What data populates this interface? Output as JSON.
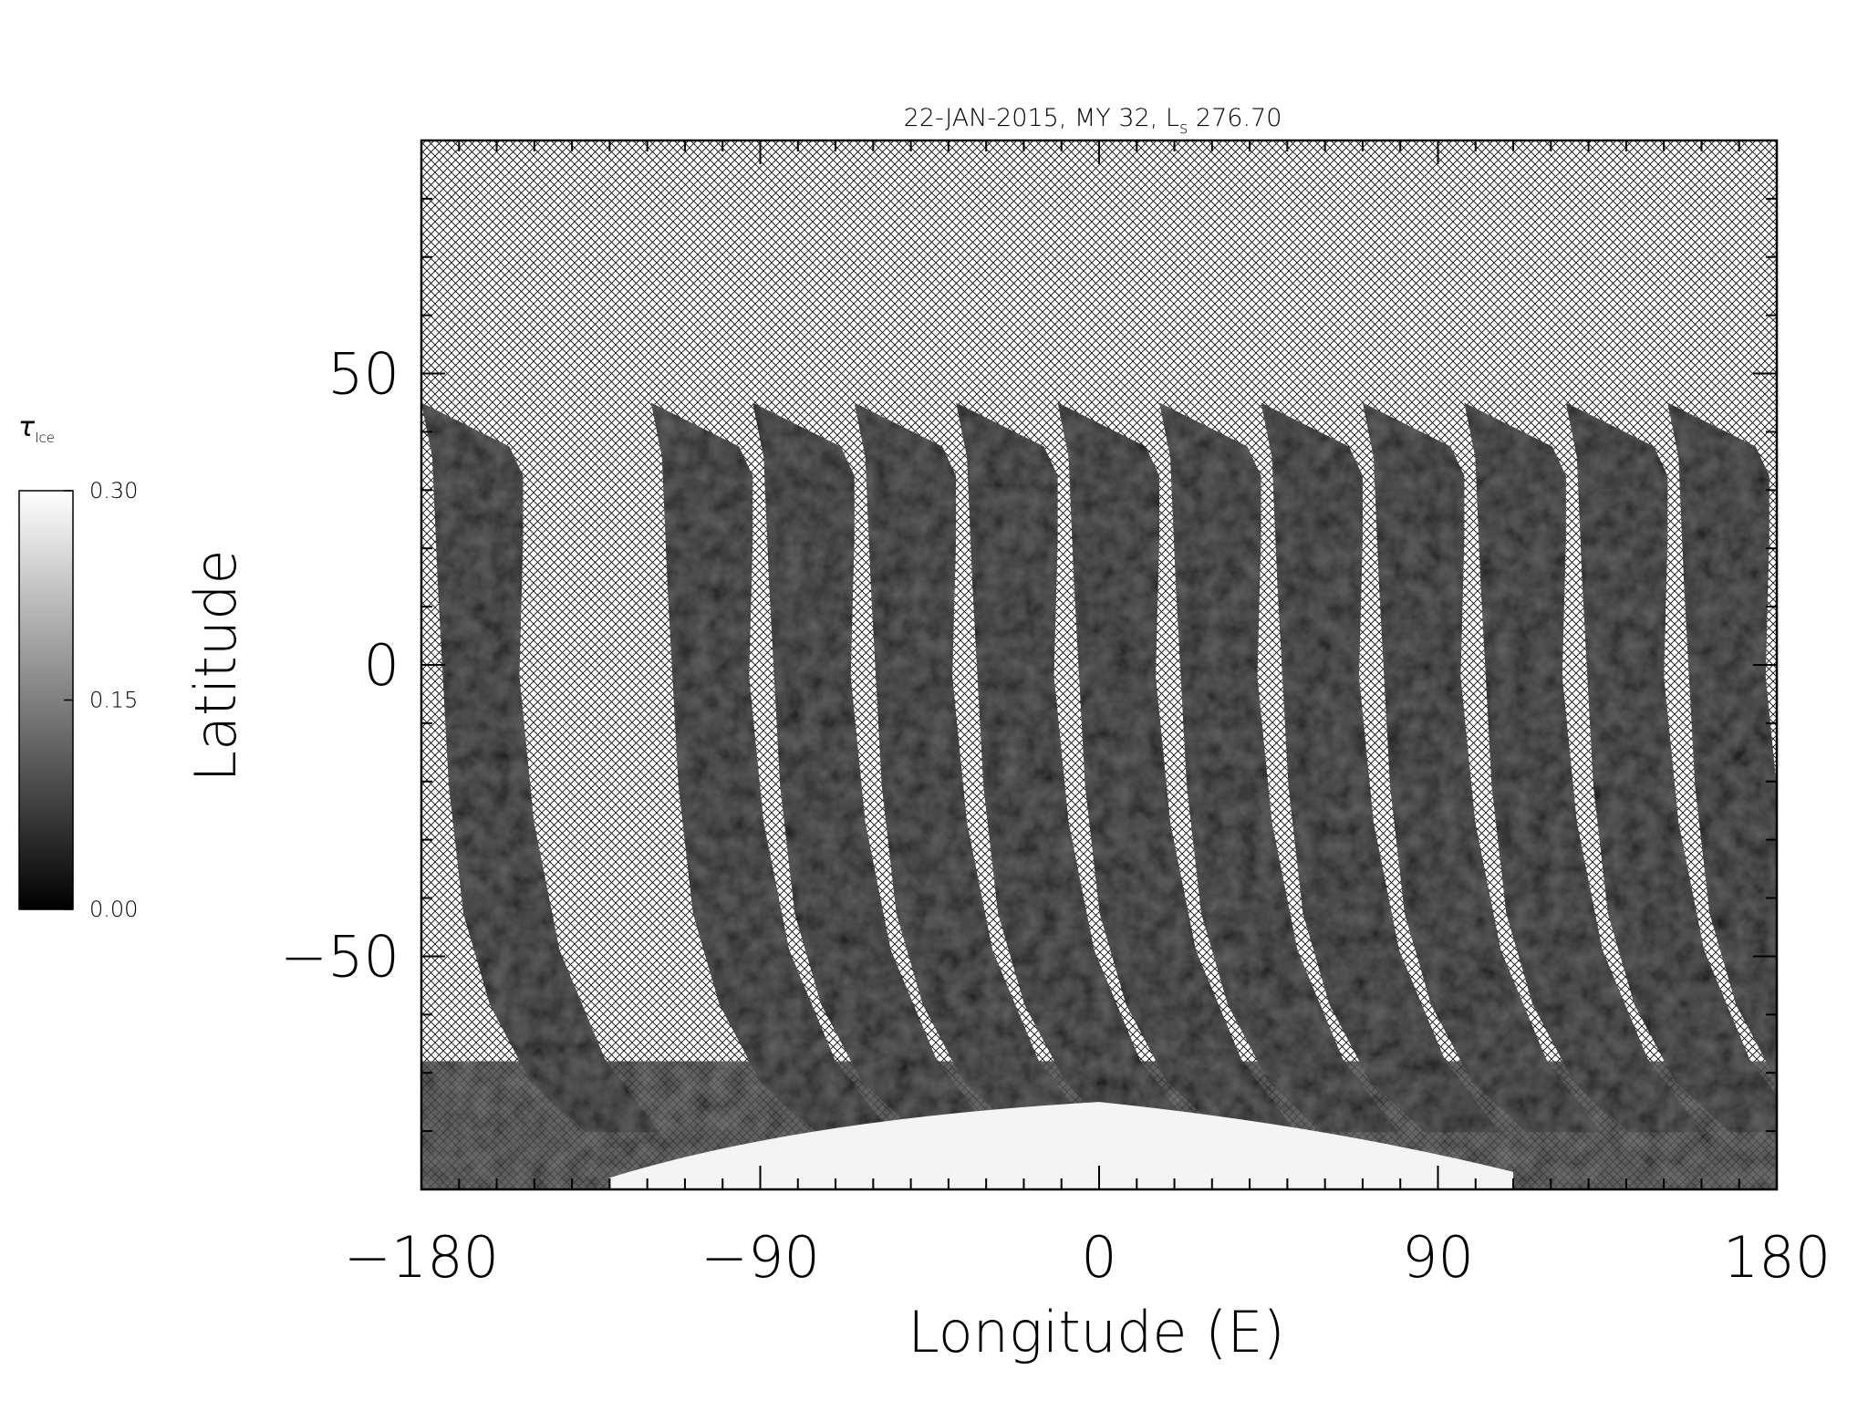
{
  "chart_data": {
    "type": "heatmap",
    "title": "22-JAN-2015, MY 32,  L",
    "title_subscript": "s",
    "title_suffix": " 276.70",
    "xlabel": "Longitude (E)",
    "ylabel": "Latitude",
    "xlim": [
      -180,
      180
    ],
    "ylim": [
      -90,
      90
    ],
    "x_ticks": [
      -180,
      -90,
      0,
      90,
      180
    ],
    "x_tick_labels": [
      "−180",
      "−90",
      "0",
      "90",
      "180"
    ],
    "y_ticks": [
      50,
      0,
      -50
    ],
    "y_tick_labels": [
      "50",
      "0",
      "−50"
    ],
    "no_data_pattern": "crosshatch",
    "swaths": [
      {
        "lon_top": -180,
        "lat_top": 45
      },
      {
        "lon_top": -119,
        "lat_top": 45
      },
      {
        "lon_top": -92,
        "lat_top": 45
      },
      {
        "lon_top": -65,
        "lat_top": 45
      },
      {
        "lon_top": -38,
        "lat_top": 45
      },
      {
        "lon_top": -11,
        "lat_top": 45
      },
      {
        "lon_top": 16,
        "lat_top": 45
      },
      {
        "lon_top": 43,
        "lat_top": 45
      },
      {
        "lon_top": 70,
        "lat_top": 45
      },
      {
        "lon_top": 97,
        "lat_top": 45
      },
      {
        "lon_top": 124,
        "lat_top": 45
      },
      {
        "lon_top": 151,
        "lat_top": 45
      }
    ],
    "colorbar": {
      "label": "τ",
      "label_subscript": "Ice",
      "min": 0.0,
      "max": 0.3,
      "ticks": [
        0.0,
        0.15,
        0.3
      ],
      "tick_labels": [
        "0.00",
        "0.15",
        "0.30"
      ],
      "colors": [
        "#000000",
        "#ffffff"
      ]
    },
    "colors": {
      "swath_fill": "#141414",
      "polar_ice": "#f4f4f4",
      "hatch": "#000000",
      "frame": "#000000"
    }
  }
}
